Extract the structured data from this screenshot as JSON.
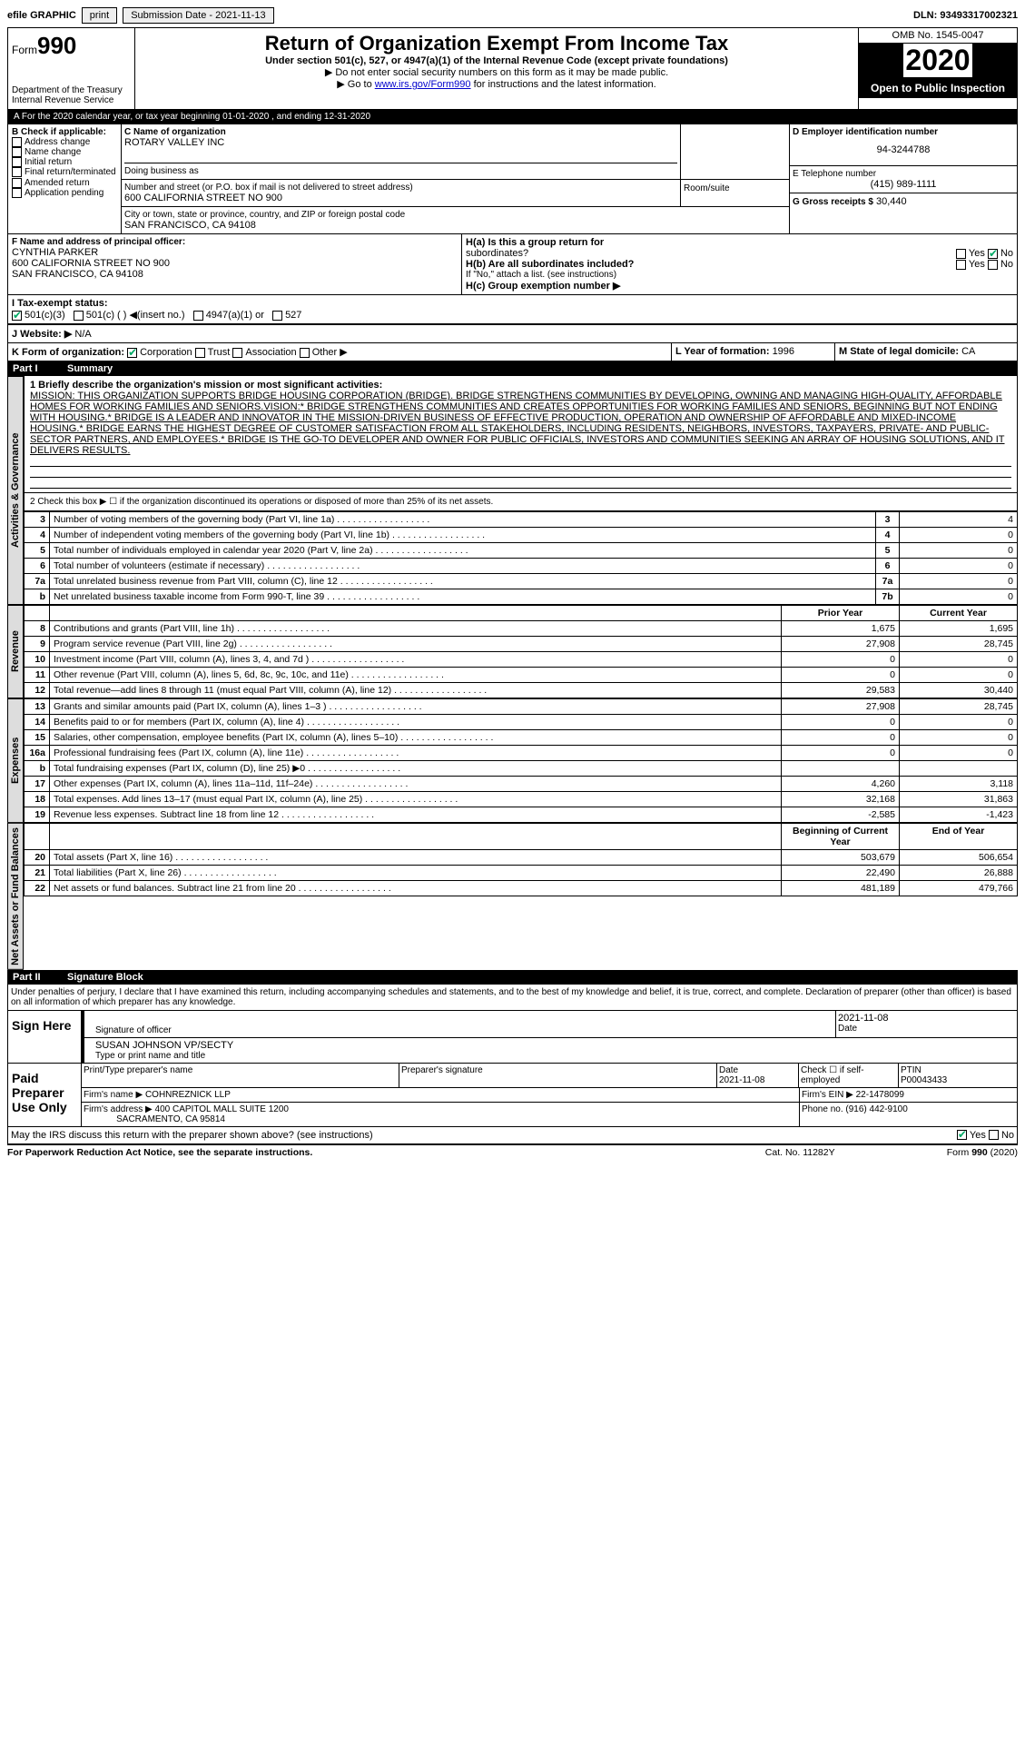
{
  "topbar": {
    "efile_label": "efile GRAPHIC",
    "print_btn": "print",
    "sub_date_label": "Submission Date - 2021-11-13",
    "dln": "DLN: 93493317002321"
  },
  "header": {
    "form_word": "Form",
    "form_num": "990",
    "dept": "Department of the Treasury\nInternal Revenue Service",
    "title": "Return of Organization Exempt From Income Tax",
    "subtitle": "Under section 501(c), 527, or 4947(a)(1) of the Internal Revenue Code (except private foundations)",
    "instr1": "▶ Do not enter social security numbers on this form as it may be made public.",
    "instr2_pre": "▶ Go to ",
    "instr2_link": "www.irs.gov/Form990",
    "instr2_post": " for instructions and the latest information.",
    "omb": "OMB No. 1545-0047",
    "year": "2020",
    "open": "Open to Public Inspection"
  },
  "period": "A For the 2020 calendar year, or tax year beginning 01-01-2020   , and ending 12-31-2020",
  "box_b": {
    "label": "B Check if applicable:",
    "items": [
      "Address change",
      "Name change",
      "Initial return",
      "Final return/terminated",
      "Amended return",
      "Application pending"
    ]
  },
  "box_c": {
    "name_label": "C Name of organization",
    "name": "ROTARY VALLEY INC",
    "dba_label": "Doing business as",
    "addr_label": "Number and street (or P.O. box if mail is not delivered to street address)",
    "addr": "600 CALIFORNIA STREET NO 900",
    "room_label": "Room/suite",
    "city_label": "City or town, state or province, country, and ZIP or foreign postal code",
    "city": "SAN FRANCISCO, CA  94108"
  },
  "box_d": {
    "label": "D Employer identification number",
    "value": "94-3244788"
  },
  "box_e": {
    "label": "E Telephone number",
    "value": "(415) 989-1111"
  },
  "box_g": {
    "label": "G Gross receipts $",
    "value": "30,440"
  },
  "box_f": {
    "label": "F  Name and address of principal officer:",
    "name": "CYNTHIA PARKER",
    "addr1": "600 CALIFORNIA STREET NO 900",
    "addr2": "SAN FRANCISCO, CA  94108"
  },
  "box_h": {
    "a_label": "H(a)  Is this a group return for",
    "a_sub": "subordinates?",
    "a_no_checked": true,
    "b_label": "H(b)  Are all subordinates included?",
    "b_note": "If \"No,\" attach a list. (see instructions)",
    "c_label": "H(c)  Group exemption number ▶"
  },
  "box_i": {
    "label": "I  Tax-exempt status:",
    "opt1": "501(c)(3)",
    "opt2": "501(c) (   ) ◀(insert no.)",
    "opt3": "4947(a)(1) or",
    "opt4": "527"
  },
  "box_j": {
    "label": "J  Website: ▶",
    "value": "N/A"
  },
  "box_k": {
    "label": "K Form of organization:",
    "opts": [
      "Corporation",
      "Trust",
      "Association",
      "Other ▶"
    ],
    "checked": 0
  },
  "box_l": {
    "label": "L Year of formation: ",
    "value": "1996"
  },
  "box_m": {
    "label": "M State of legal domicile: ",
    "value": "CA"
  },
  "part1": {
    "num": "Part I",
    "title": "Summary"
  },
  "mission_label": "1  Briefly describe the organization's mission or most significant activities:",
  "mission": "MISSION: THIS ORGANIZATION SUPPORTS BRIDGE HOUSING CORPORATION (BRIDGE). BRIDGE STRENGTHENS COMMUNITIES BY DEVELOPING, OWNING AND MANAGING HIGH-QUALITY, AFFORDABLE HOMES FOR WORKING FAMILIES AND SENIORS.VISION:* BRIDGE STRENGTHENS COMMUNITIES AND CREATES OPPORTUNITIES FOR WORKING FAMILIES AND SENIORS, BEGINNING BUT NOT ENDING WITH HOUSING.* BRIDGE IS A LEADER AND INNOVATOR IN THE MISSION-DRIVEN BUSINESS OF EFFECTIVE PRODUCTION, OPERATION AND OWNERSHIP OF AFFORDABLE AND MIXED-INCOME HOUSING.* BRIDGE EARNS THE HIGHEST DEGREE OF CUSTOMER SATISFACTION FROM ALL STAKEHOLDERS, INCLUDING RESIDENTS, NEIGHBORS, INVESTORS, TAXPAYERS, PRIVATE- AND PUBLIC-SECTOR PARTNERS, AND EMPLOYEES.* BRIDGE IS THE GO-TO DEVELOPER AND OWNER FOR PUBLIC OFFICIALS, INVESTORS AND COMMUNITIES SEEKING AN ARRAY OF HOUSING SOLUTIONS, AND IT DELIVERS RESULTS.",
  "line2": "2  Check this box ▶ ☐  if the organization discontinued its operations or disposed of more than 25% of its net assets.",
  "vtabs": {
    "ag": "Activities & Governance",
    "rev": "Revenue",
    "exp": "Expenses",
    "net": "Net Assets or Fund Balances"
  },
  "ag_rows": [
    {
      "n": "3",
      "t": "Number of voting members of the governing body (Part VI, line 1a)",
      "l": "3",
      "v": "4"
    },
    {
      "n": "4",
      "t": "Number of independent voting members of the governing body (Part VI, line 1b)",
      "l": "4",
      "v": "0"
    },
    {
      "n": "5",
      "t": "Total number of individuals employed in calendar year 2020 (Part V, line 2a)",
      "l": "5",
      "v": "0"
    },
    {
      "n": "6",
      "t": "Total number of volunteers (estimate if necessary)",
      "l": "6",
      "v": "0"
    },
    {
      "n": "7a",
      "t": "Total unrelated business revenue from Part VIII, column (C), line 12",
      "l": "7a",
      "v": "0"
    },
    {
      "n": "b",
      "t": "Net unrelated business taxable income from Form 990-T, line 39",
      "l": "7b",
      "v": "0"
    }
  ],
  "col_headers": {
    "prior": "Prior Year",
    "current": "Current Year"
  },
  "rev_rows": [
    {
      "n": "8",
      "t": "Contributions and grants (Part VIII, line 1h)",
      "p": "1,675",
      "c": "1,695"
    },
    {
      "n": "9",
      "t": "Program service revenue (Part VIII, line 2g)",
      "p": "27,908",
      "c": "28,745"
    },
    {
      "n": "10",
      "t": "Investment income (Part VIII, column (A), lines 3, 4, and 7d )",
      "p": "0",
      "c": "0"
    },
    {
      "n": "11",
      "t": "Other revenue (Part VIII, column (A), lines 5, 6d, 8c, 9c, 10c, and 11e)",
      "p": "0",
      "c": "0"
    },
    {
      "n": "12",
      "t": "Total revenue—add lines 8 through 11 (must equal Part VIII, column (A), line 12)",
      "p": "29,583",
      "c": "30,440"
    }
  ],
  "exp_rows": [
    {
      "n": "13",
      "t": "Grants and similar amounts paid (Part IX, column (A), lines 1–3 )",
      "p": "27,908",
      "c": "28,745"
    },
    {
      "n": "14",
      "t": "Benefits paid to or for members (Part IX, column (A), line 4)",
      "p": "0",
      "c": "0"
    },
    {
      "n": "15",
      "t": "Salaries, other compensation, employee benefits (Part IX, column (A), lines 5–10)",
      "p": "0",
      "c": "0"
    },
    {
      "n": "16a",
      "t": "Professional fundraising fees (Part IX, column (A), line 11e)",
      "p": "0",
      "c": "0"
    },
    {
      "n": "b",
      "t": "Total fundraising expenses (Part IX, column (D), line 25) ▶0",
      "p": "",
      "c": ""
    },
    {
      "n": "17",
      "t": "Other expenses (Part IX, column (A), lines 11a–11d, 11f–24e)",
      "p": "4,260",
      "c": "3,118"
    },
    {
      "n": "18",
      "t": "Total expenses. Add lines 13–17 (must equal Part IX, column (A), line 25)",
      "p": "32,168",
      "c": "31,863"
    },
    {
      "n": "19",
      "t": "Revenue less expenses. Subtract line 18 from line 12",
      "p": "-2,585",
      "c": "-1,423"
    }
  ],
  "net_headers": {
    "begin": "Beginning of Current Year",
    "end": "End of Year"
  },
  "net_rows": [
    {
      "n": "20",
      "t": "Total assets (Part X, line 16)",
      "p": "503,679",
      "c": "506,654"
    },
    {
      "n": "21",
      "t": "Total liabilities (Part X, line 26)",
      "p": "22,490",
      "c": "26,888"
    },
    {
      "n": "22",
      "t": "Net assets or fund balances. Subtract line 21 from line 20",
      "p": "481,189",
      "c": "479,766"
    }
  ],
  "part2": {
    "num": "Part II",
    "title": "Signature Block"
  },
  "perjury": "Under penalties of perjury, I declare that I have examined this return, including accompanying schedules and statements, and to the best of my knowledge and belief, it is true, correct, and complete. Declaration of preparer (other than officer) is based on all information of which preparer has any knowledge.",
  "sign": {
    "here": "Sign Here",
    "sig_label": "Signature of officer",
    "date": "2021-11-08",
    "date_label": "Date",
    "name": "SUSAN JOHNSON  VP/SECTY",
    "name_label": "Type or print name and title"
  },
  "paid": {
    "label": "Paid Preparer Use Only",
    "h1": "Print/Type preparer's name",
    "h2": "Preparer's signature",
    "h3": "Date",
    "h3v": "2021-11-08",
    "h4": "Check ☐ if self-employed",
    "h5": "PTIN",
    "h5v": "P00043433",
    "firm_label": "Firm's name    ▶",
    "firm": "COHNREZNICK LLP",
    "ein_label": "Firm's EIN ▶",
    "ein": "22-1478099",
    "addr_label": "Firm's address ▶",
    "addr1": "400 CAPITOL MALL SUITE 1200",
    "addr2": "SACRAMENTO, CA  95814",
    "phone_label": "Phone no.",
    "phone": "(916) 442-9100"
  },
  "discuss": "May the IRS discuss this return with the preparer shown above? (see instructions)",
  "discuss_yes_checked": true,
  "footer": {
    "pra": "For Paperwork Reduction Act Notice, see the separate instructions.",
    "cat": "Cat. No. 11282Y",
    "form": "Form 990 (2020)"
  }
}
